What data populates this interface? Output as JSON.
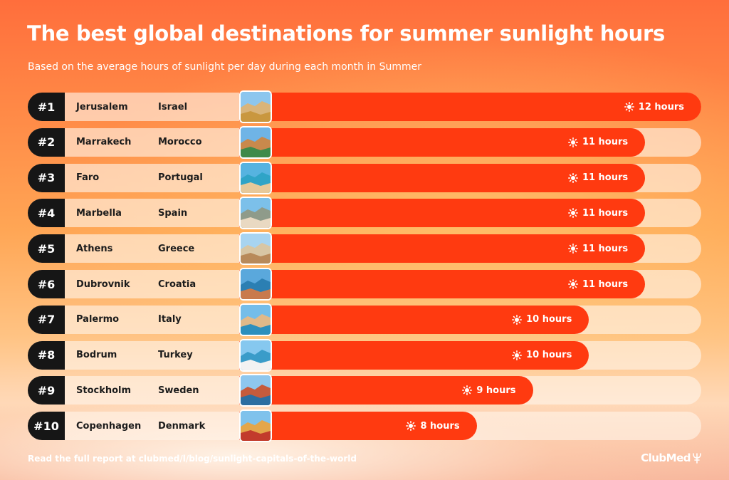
{
  "header": {
    "title": "The best global destinations for summer sunlight hours",
    "subtitle": "Based on the average hours of sunlight per day during each month in Summer"
  },
  "footer": {
    "note": "Read the full report at clubmed/l/blog/sunlight-capitals-of-the-world",
    "logo_text": "ClubMed"
  },
  "colors": {
    "bar": "#ff3a10",
    "rank_badge": "#161616",
    "track": "#fff3e8"
  },
  "chart_data": {
    "type": "bar",
    "orientation": "horizontal",
    "title": "The best global destinations for summer sunlight hours",
    "subtitle": "Based on the average hours of sunlight per day during each month in Summer",
    "unit": "hours",
    "xlim": [
      0,
      12
    ],
    "rows": [
      {
        "rank": "#1",
        "city": "Jerusalem",
        "country": "Israel",
        "value": 12,
        "label": "12 hours"
      },
      {
        "rank": "#2",
        "city": "Marrakech",
        "country": "Morocco",
        "value": 11,
        "label": "11 hours"
      },
      {
        "rank": "#3",
        "city": "Faro",
        "country": "Portugal",
        "value": 11,
        "label": "11 hours"
      },
      {
        "rank": "#4",
        "city": "Marbella",
        "country": "Spain",
        "value": 11,
        "label": "11 hours"
      },
      {
        "rank": "#5",
        "city": "Athens",
        "country": "Greece",
        "value": 11,
        "label": "11 hours"
      },
      {
        "rank": "#6",
        "city": "Dubrovnik",
        "country": "Croatia",
        "value": 11,
        "label": "11 hours"
      },
      {
        "rank": "#7",
        "city": "Palermo",
        "country": "Italy",
        "value": 10,
        "label": "10 hours"
      },
      {
        "rank": "#8",
        "city": "Bodrum",
        "country": "Turkey",
        "value": 10,
        "label": "10 hours"
      },
      {
        "rank": "#9",
        "city": "Stockholm",
        "country": "Sweden",
        "value": 9,
        "label": "9 hours"
      },
      {
        "rank": "#10",
        "city": "Copenhagen",
        "country": "Denmark",
        "value": 8,
        "label": "8 hours"
      }
    ]
  }
}
